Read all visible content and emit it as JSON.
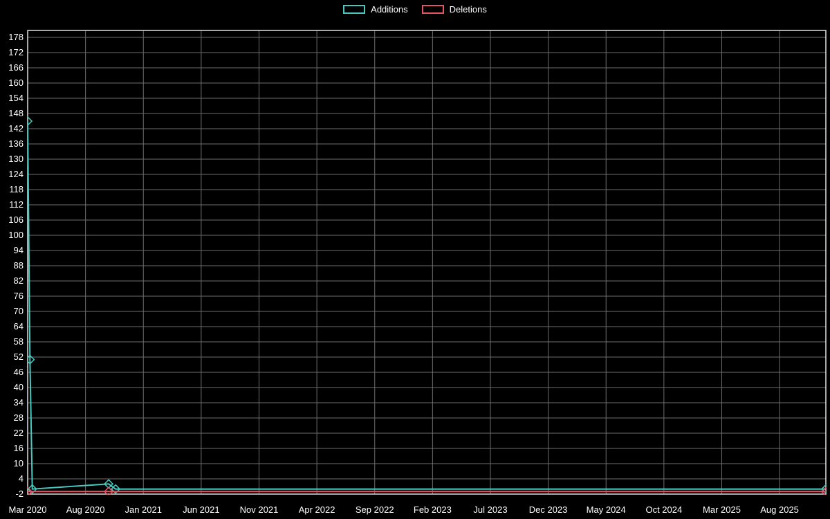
{
  "legend": {
    "items": [
      {
        "label": "Additions",
        "color": "#48c9c0"
      },
      {
        "label": "Deletions",
        "color": "#e25563"
      }
    ]
  },
  "chart_data": {
    "type": "line",
    "title": "",
    "legend_position": "top-center",
    "grid": true,
    "background_color": "#000000",
    "grid_color": "#6e6e6e",
    "axis_color": "#e0e0e0",
    "text_color": "#ffffff",
    "x_axis": {
      "unit": "months_since_first_tick",
      "tick_labels": [
        "Mar 2020",
        "Aug 2020",
        "Jan 2021",
        "Jun 2021",
        "Nov 2021",
        "Apr 2022",
        "Sep 2022",
        "Feb 2023",
        "Jul 2023",
        "Dec 2023",
        "May 2024",
        "Oct 2024",
        "Mar 2025",
        "Aug 2025"
      ],
      "tick_month_offsets": [
        0,
        5,
        10,
        15,
        20,
        25,
        30,
        35,
        40,
        45,
        50,
        55,
        60,
        65
      ],
      "range_months": [
        0,
        69
      ]
    },
    "y_axis": {
      "tick_values": [
        -2,
        4,
        10,
        16,
        22,
        28,
        34,
        40,
        46,
        52,
        58,
        64,
        70,
        76,
        82,
        88,
        94,
        100,
        106,
        112,
        118,
        124,
        130,
        136,
        142,
        148,
        154,
        160,
        166,
        172,
        178
      ],
      "range": [
        -2,
        178
      ]
    },
    "series": [
      {
        "name": "Additions",
        "color": "#48c9c0",
        "marker": "open-diamond",
        "points_month_value": [
          [
            0,
            145
          ],
          [
            0.2,
            51
          ],
          [
            0.4,
            0
          ],
          [
            7,
            2
          ],
          [
            7.6,
            0
          ],
          [
            69,
            0
          ]
        ]
      },
      {
        "name": "Deletions",
        "color": "#e25563",
        "marker": "open-diamond",
        "points_month_value": [
          [
            0,
            -1
          ],
          [
            7,
            -1
          ],
          [
            69,
            -1
          ]
        ]
      }
    ]
  }
}
